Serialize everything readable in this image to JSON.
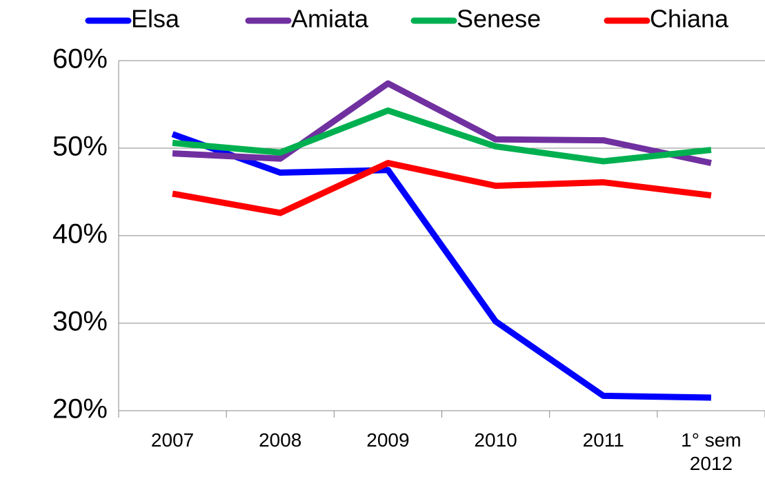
{
  "chart_data": {
    "type": "line",
    "categories": [
      "2007",
      "2008",
      "2009",
      "2010",
      "2011",
      "1° sem 2012"
    ],
    "series": [
      {
        "name": "Elsa",
        "color": "#0000ff",
        "values": [
          51.6,
          47.2,
          47.5,
          30.2,
          21.7,
          21.5
        ]
      },
      {
        "name": "Amiata",
        "color": "#7030a0",
        "values": [
          49.4,
          48.8,
          57.4,
          51.0,
          50.9,
          48.3
        ]
      },
      {
        "name": "Senese",
        "color": "#00b050",
        "values": [
          50.6,
          49.5,
          54.3,
          50.2,
          48.5,
          49.8
        ]
      },
      {
        "name": "Chiana",
        "color": "#ff0000",
        "values": [
          44.8,
          42.6,
          48.3,
          45.7,
          46.1,
          44.6
        ]
      }
    ],
    "ylim": [
      20,
      60
    ],
    "yticks": [
      {
        "value": 20,
        "label": "20%"
      },
      {
        "value": 30,
        "label": "30%"
      },
      {
        "value": 40,
        "label": "40%"
      },
      {
        "value": 50,
        "label": "50%"
      },
      {
        "value": 60,
        "label": "60%"
      }
    ],
    "grid": true,
    "legend": "top"
  }
}
